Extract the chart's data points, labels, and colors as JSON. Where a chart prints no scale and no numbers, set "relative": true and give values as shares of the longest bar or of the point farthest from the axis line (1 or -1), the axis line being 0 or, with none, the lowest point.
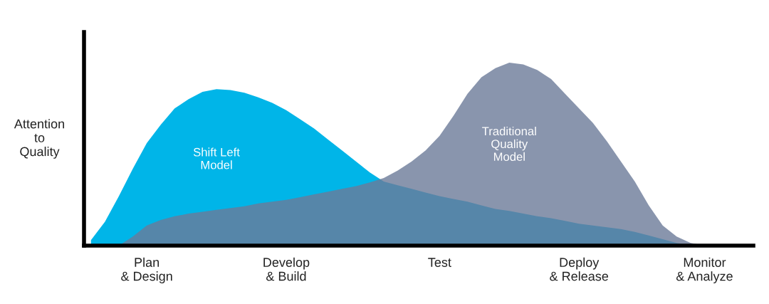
{
  "chart_data": {
    "type": "area",
    "relative": true,
    "ylabel": "Attention\nto\nQuality",
    "categories": [
      null,
      null,
      null,
      null,
      "Plan\n& Design",
      null,
      null,
      null,
      null,
      null,
      null,
      null,
      null,
      null,
      "Develop\n& Build",
      null,
      null,
      null,
      null,
      null,
      null,
      null,
      null,
      null,
      null,
      "Test",
      null,
      null,
      null,
      null,
      null,
      null,
      null,
      null,
      null,
      "Deploy\n& Release",
      null,
      null,
      null,
      null,
      null,
      null,
      null,
      null,
      "Monitor\n& Analyze",
      null,
      null,
      null
    ],
    "series": [
      {
        "name": "Shift Left\nModel",
        "color": "#00b5e8",
        "values": [
          0.03,
          0.13,
          0.27,
          0.42,
          0.56,
          0.66,
          0.75,
          0.8,
          0.84,
          0.855,
          0.85,
          0.835,
          0.81,
          0.78,
          0.74,
          0.69,
          0.64,
          0.58,
          0.52,
          0.46,
          0.4,
          0.35,
          0.33,
          0.31,
          0.29,
          0.27,
          0.255,
          0.24,
          0.22,
          0.2,
          0.19,
          0.175,
          0.16,
          0.15,
          0.135,
          0.12,
          0.11,
          0.1,
          0.09,
          0.075,
          0.055,
          0.035,
          0.015,
          0.003,
          0,
          0,
          0,
          0
        ]
      },
      {
        "name": "Traditional\nQuality\nModel",
        "color": "#6b7a99",
        "values": [
          0,
          0,
          0,
          0.05,
          0.11,
          0.14,
          0.16,
          0.175,
          0.185,
          0.195,
          0.205,
          0.215,
          0.23,
          0.24,
          0.25,
          0.265,
          0.28,
          0.295,
          0.31,
          0.325,
          0.345,
          0.37,
          0.41,
          0.46,
          0.52,
          0.6,
          0.71,
          0.83,
          0.92,
          0.97,
          1.0,
          0.99,
          0.96,
          0.91,
          0.83,
          0.75,
          0.67,
          0.57,
          0.46,
          0.35,
          0.22,
          0.11,
          0.05,
          0.015,
          0,
          0,
          0,
          0
        ]
      }
    ]
  }
}
